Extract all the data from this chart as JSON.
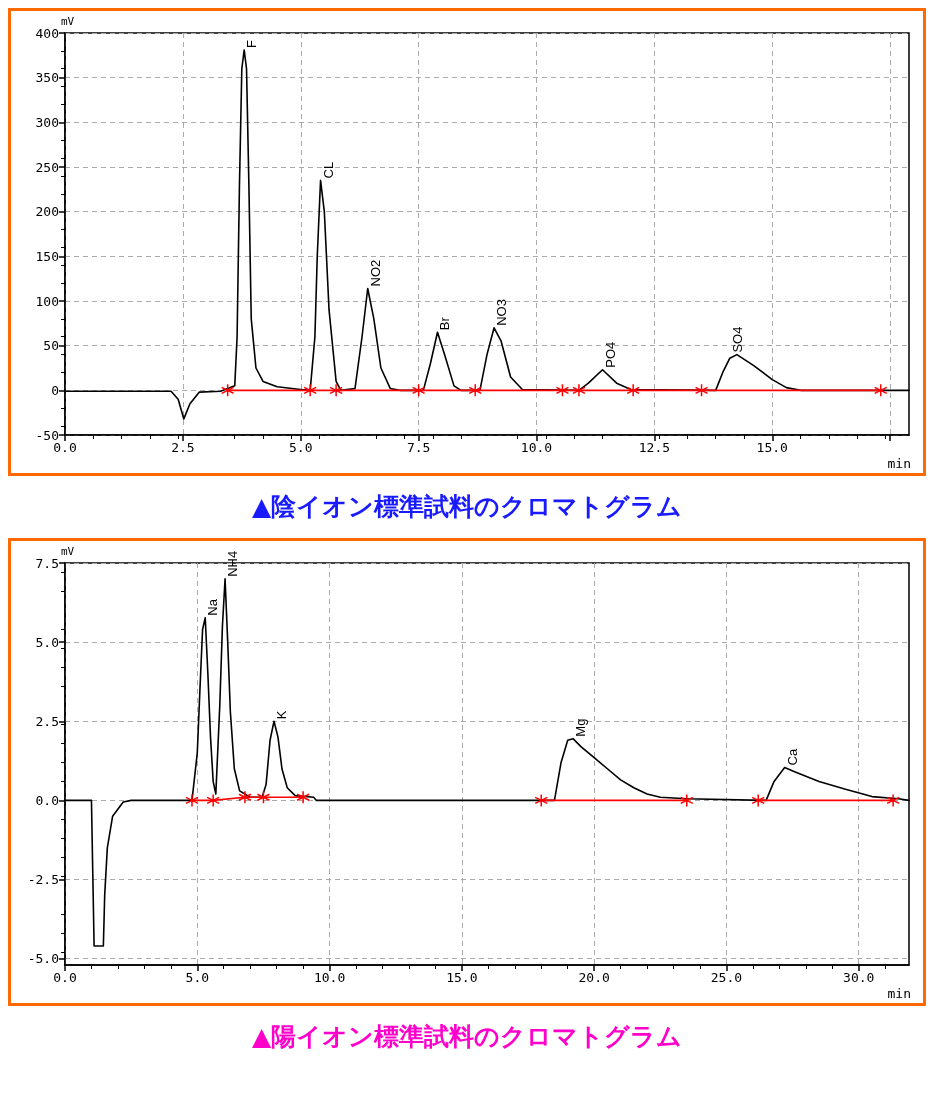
{
  "chart_data": [
    {
      "type": "line",
      "title": "▲陰イオン標準試料のクロマトグラム",
      "xlabel": "min",
      "ylabel": "mV",
      "grid": true,
      "marker": "none",
      "line_style": "solid",
      "xlim": [
        0,
        17.9
      ],
      "ylim": [
        -50,
        400
      ],
      "xticks": [
        {
          "value": 0,
          "label": "0.0"
        },
        {
          "value": 2.5,
          "label": "2.5"
        },
        {
          "value": 5,
          "label": "5.0"
        },
        {
          "value": 7.5,
          "label": "7.5"
        },
        {
          "value": 10,
          "label": "10.0"
        },
        {
          "value": 12.5,
          "label": "12.5"
        },
        {
          "value": 15,
          "label": "15.0"
        },
        {
          "value": 17.5,
          "label": null
        }
      ],
      "yticks": [
        -50,
        0,
        50,
        100,
        150,
        200,
        250,
        300,
        350,
        400
      ],
      "series": [
        {
          "color": "#000000",
          "x": [
            0,
            2.25,
            2.4,
            2.52,
            2.65,
            2.85,
            3.3,
            3.6,
            3.65,
            3.7,
            3.75,
            3.8,
            3.85,
            3.9,
            3.95,
            4.05,
            4.2,
            4.5,
            5.0,
            5.2,
            5.3,
            5.35,
            5.42,
            5.5,
            5.6,
            5.75,
            5.85,
            6.15,
            6.3,
            6.42,
            6.55,
            6.7,
            6.9,
            7.1,
            7.6,
            7.75,
            7.9,
            8.05,
            8.25,
            8.4,
            8.8,
            8.95,
            9.1,
            9.25,
            9.45,
            9.7,
            10.9,
            11.1,
            11.4,
            11.7,
            12.0,
            13.8,
            13.95,
            14.1,
            14.25,
            14.6,
            15.0,
            15.3,
            15.6,
            17.9
          ],
          "values": [
            -1,
            -1,
            -10,
            -32,
            -15,
            -2,
            -1,
            5,
            60,
            230,
            360,
            381,
            360,
            230,
            80,
            25,
            10,
            4,
            1,
            0,
            60,
            150,
            235,
            200,
            90,
            10,
            0,
            2,
            60,
            114,
            80,
            25,
            2,
            0,
            0,
            30,
            65,
            40,
            5,
            0,
            0,
            40,
            70,
            55,
            15,
            1,
            0,
            8,
            23,
            8,
            1,
            0,
            20,
            36,
            40,
            28,
            12,
            3,
            0,
            0
          ]
        },
        {
          "color": "#ff0000",
          "marker": "cross",
          "x": [
            3.45,
            5.2,
            5.75,
            7.5,
            8.7,
            10.55,
            10.9,
            12.05,
            13.5,
            17.3
          ],
          "values": [
            0,
            0,
            0,
            0,
            0,
            0,
            0,
            0,
            0,
            0
          ]
        }
      ],
      "annotations": [
        {
          "text": "F",
          "x": 3.8,
          "y": 381
        },
        {
          "text": "CL",
          "x": 5.42,
          "y": 235
        },
        {
          "text": "NO2",
          "x": 6.42,
          "y": 114
        },
        {
          "text": "Br",
          "x": 7.9,
          "y": 65
        },
        {
          "text": "NO3",
          "x": 9.1,
          "y": 70
        },
        {
          "text": "PO4",
          "x": 11.4,
          "y": 23
        },
        {
          "text": "SO4",
          "x": 14.1,
          "y": 40
        }
      ]
    },
    {
      "type": "line",
      "title": "▲陽イオン標準試料のクロマトグラム",
      "xlabel": "min",
      "ylabel": "mV",
      "grid": true,
      "marker": "none",
      "line_style": "solid",
      "xlim": [
        0,
        31.9
      ],
      "ylim": [
        -5.2,
        7.5
      ],
      "xticks": [
        {
          "value": 0,
          "label": "0.0"
        },
        {
          "value": 5,
          "label": "5.0"
        },
        {
          "value": 10,
          "label": "10.0"
        },
        {
          "value": 15,
          "label": "15.0"
        },
        {
          "value": 20,
          "label": "20.0"
        },
        {
          "value": 25,
          "label": "25.0"
        },
        {
          "value": 30,
          "label": "30.0"
        }
      ],
      "yticks": [
        {
          "value": -5,
          "label": "-5.0"
        },
        {
          "value": -2.5,
          "label": "-2.5"
        },
        {
          "value": 0,
          "label": "0.0"
        },
        {
          "value": 2.5,
          "label": "2.5"
        },
        {
          "value": 5,
          "label": "5.0"
        },
        {
          "value": 7.5,
          "label": "7.5"
        }
      ],
      "series": [
        {
          "color": "#000000",
          "x": [
            0,
            1.0,
            1.05,
            1.1,
            1.45,
            1.5,
            1.6,
            1.8,
            2.2,
            2.5,
            4.8,
            5.0,
            5.1,
            5.2,
            5.3,
            5.4,
            5.5,
            5.6,
            5.7,
            5.85,
            5.95,
            6.05,
            6.15,
            6.25,
            6.4,
            6.6,
            7.0,
            7.45,
            7.6,
            7.75,
            7.9,
            8.05,
            8.2,
            8.4,
            8.7,
            9.4,
            9.5,
            18.5,
            18.75,
            19.0,
            19.2,
            19.5,
            20,
            20.5,
            21,
            21.5,
            22,
            22.5,
            23.5,
            26.5,
            26.8,
            27.2,
            27.6,
            28.5,
            29.5,
            30.5,
            31.5,
            31.9
          ],
          "values": [
            0,
            0,
            -2.3,
            -4.6,
            -4.6,
            -3,
            -1.5,
            -0.5,
            -0.05,
            0,
            0,
            1.5,
            3.5,
            5.4,
            5.77,
            4,
            2,
            0.6,
            0.2,
            3,
            5.5,
            7.0,
            5,
            2.8,
            1,
            0.3,
            0.1,
            0.1,
            0.5,
            1.9,
            2.5,
            2,
            1,
            0.4,
            0.15,
            0.1,
            0,
            0,
            1.2,
            1.9,
            1.95,
            1.7,
            1.35,
            1.0,
            0.65,
            0.4,
            0.2,
            0.1,
            0.05,
            0,
            0.6,
            1.04,
            0.9,
            0.6,
            0.35,
            0.12,
            0.05,
            0
          ]
        },
        {
          "color": "#ff0000",
          "marker": "cross",
          "x": [
            4.8,
            5.6,
            6.8,
            7.5,
            9.0,
            13.5,
            18.0,
            23.5,
            24.8,
            26.2,
            31.3
          ],
          "values": [
            0,
            0,
            0.1,
            0.1,
            0.1,
            null,
            0,
            0,
            null,
            0,
            0
          ]
        }
      ],
      "annotations": [
        {
          "text": "Na",
          "x": 5.3,
          "y": 5.77
        },
        {
          "text": "NH4",
          "x": 6.05,
          "y": 7.0
        },
        {
          "text": "K",
          "x": 7.9,
          "y": 2.5
        },
        {
          "text": "Mg",
          "x": 19.2,
          "y": 1.95
        },
        {
          "text": "Ca",
          "x": 27.2,
          "y": 1.04
        }
      ]
    }
  ]
}
